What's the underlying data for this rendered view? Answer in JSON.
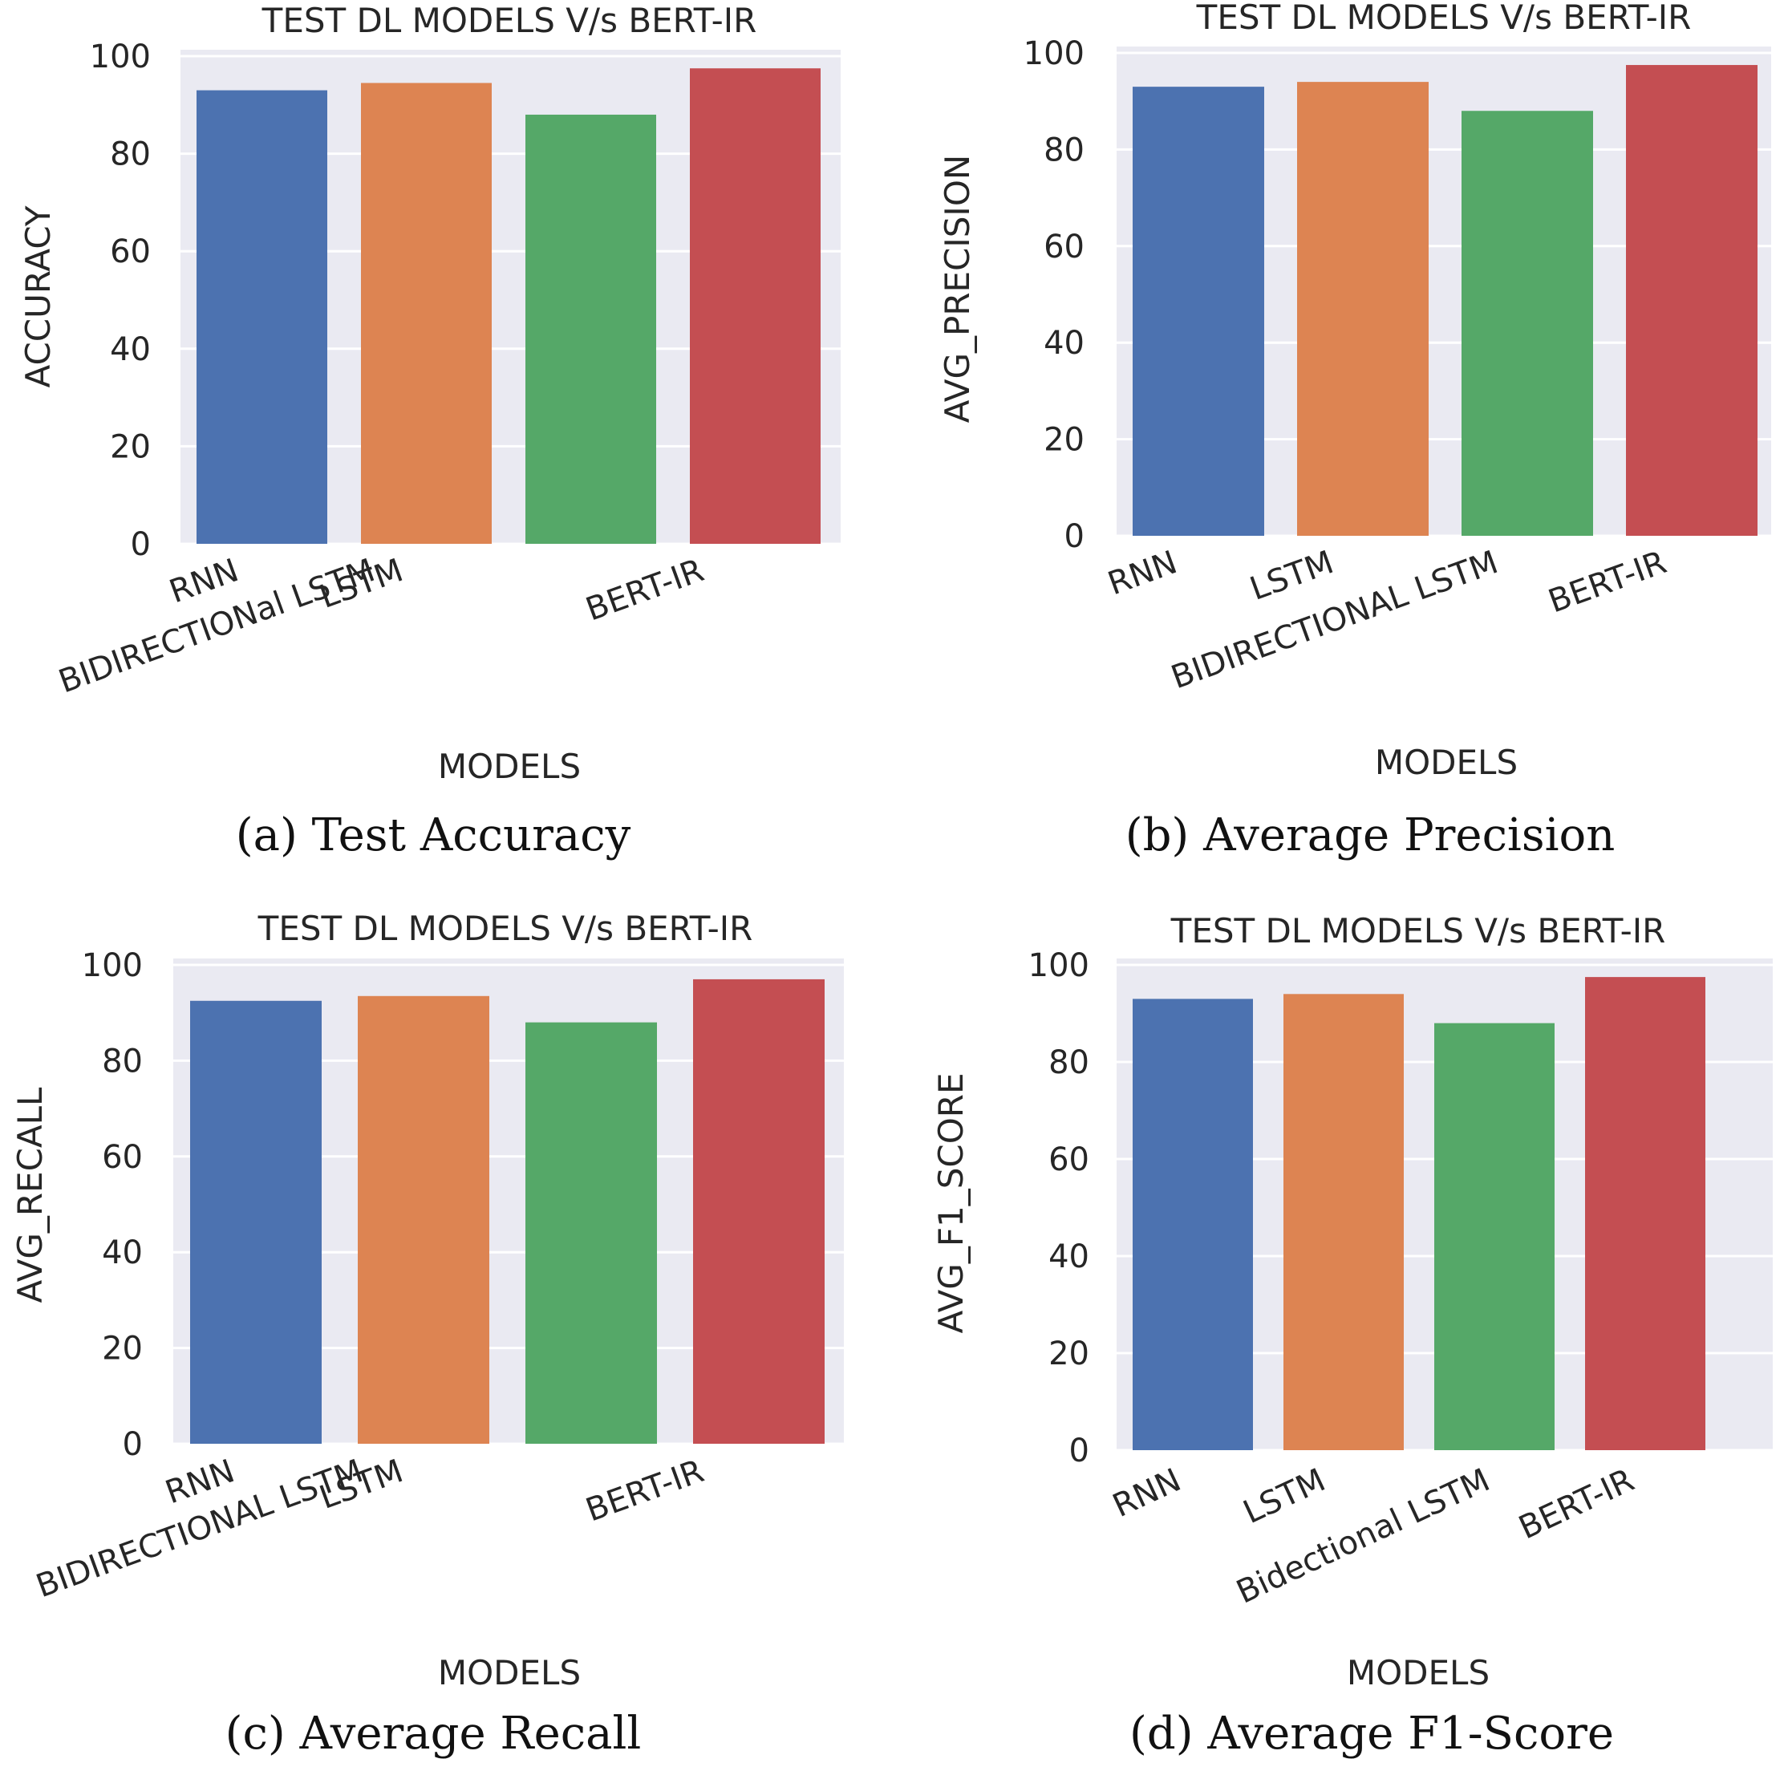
{
  "colors": {
    "plot_background": "#eaeaf2",
    "grid": "#ffffff",
    "text": "#262626",
    "bars": [
      "#4c72b0",
      "#dd8452",
      "#55a868",
      "#c44e52"
    ]
  },
  "chart_data": [
    {
      "type": "bar",
      "title": "TEST DL MODELS V/s BERT-IR",
      "caption": "(a) Test Accuracy",
      "xlabel": "MODELS",
      "ylabel": "ACCURACY",
      "categories": [
        "RNN",
        "LSTM",
        "BIDIRECTIONal LSTM",
        "BERT-IR"
      ],
      "values": [
        93,
        94.5,
        88,
        97.5
      ],
      "ylim": [
        0,
        100
      ],
      "yticks": [
        0,
        20,
        40,
        60,
        80,
        100
      ],
      "grid": true,
      "legend": "none"
    },
    {
      "type": "bar",
      "title": "TEST DL MODELS V/s BERT-IR",
      "caption": "(b) Average Precision",
      "xlabel": "MODELS",
      "ylabel": "AVG_PRECISION",
      "categories": [
        "RNN",
        "LSTM",
        "BIDIRECTIONAL LSTM",
        "BERT-IR"
      ],
      "values": [
        93,
        94,
        88,
        97.5
      ],
      "ylim": [
        0,
        100
      ],
      "yticks": [
        0,
        20,
        40,
        60,
        80,
        100
      ],
      "grid": true,
      "legend": "none"
    },
    {
      "type": "bar",
      "title": "TEST DL MODELS V/s BERT-IR",
      "caption": "(c) Average Recall",
      "xlabel": "MODELS",
      "ylabel": "AVG_RECALL",
      "categories": [
        "RNN",
        "LSTM",
        "BIDIRECTIONAL LSTM",
        "BERT-IR"
      ],
      "values": [
        92.5,
        93.5,
        88,
        97
      ],
      "ylim": [
        0,
        100
      ],
      "yticks": [
        0,
        20,
        40,
        60,
        80,
        100
      ],
      "grid": true,
      "legend": "none"
    },
    {
      "type": "bar",
      "title": "TEST DL MODELS V/s BERT-IR",
      "caption": "(d) Average F1-Score",
      "xlabel": "MODELS",
      "ylabel": "AVG_F1_SCORE",
      "categories": [
        "RNN",
        "LSTM",
        "Bidectional LSTM",
        "BERT-IR"
      ],
      "values": [
        93,
        94,
        88,
        97.5
      ],
      "ylim": [
        0,
        100
      ],
      "yticks": [
        0,
        20,
        40,
        60,
        80,
        100
      ],
      "grid": true,
      "legend": "none"
    }
  ]
}
